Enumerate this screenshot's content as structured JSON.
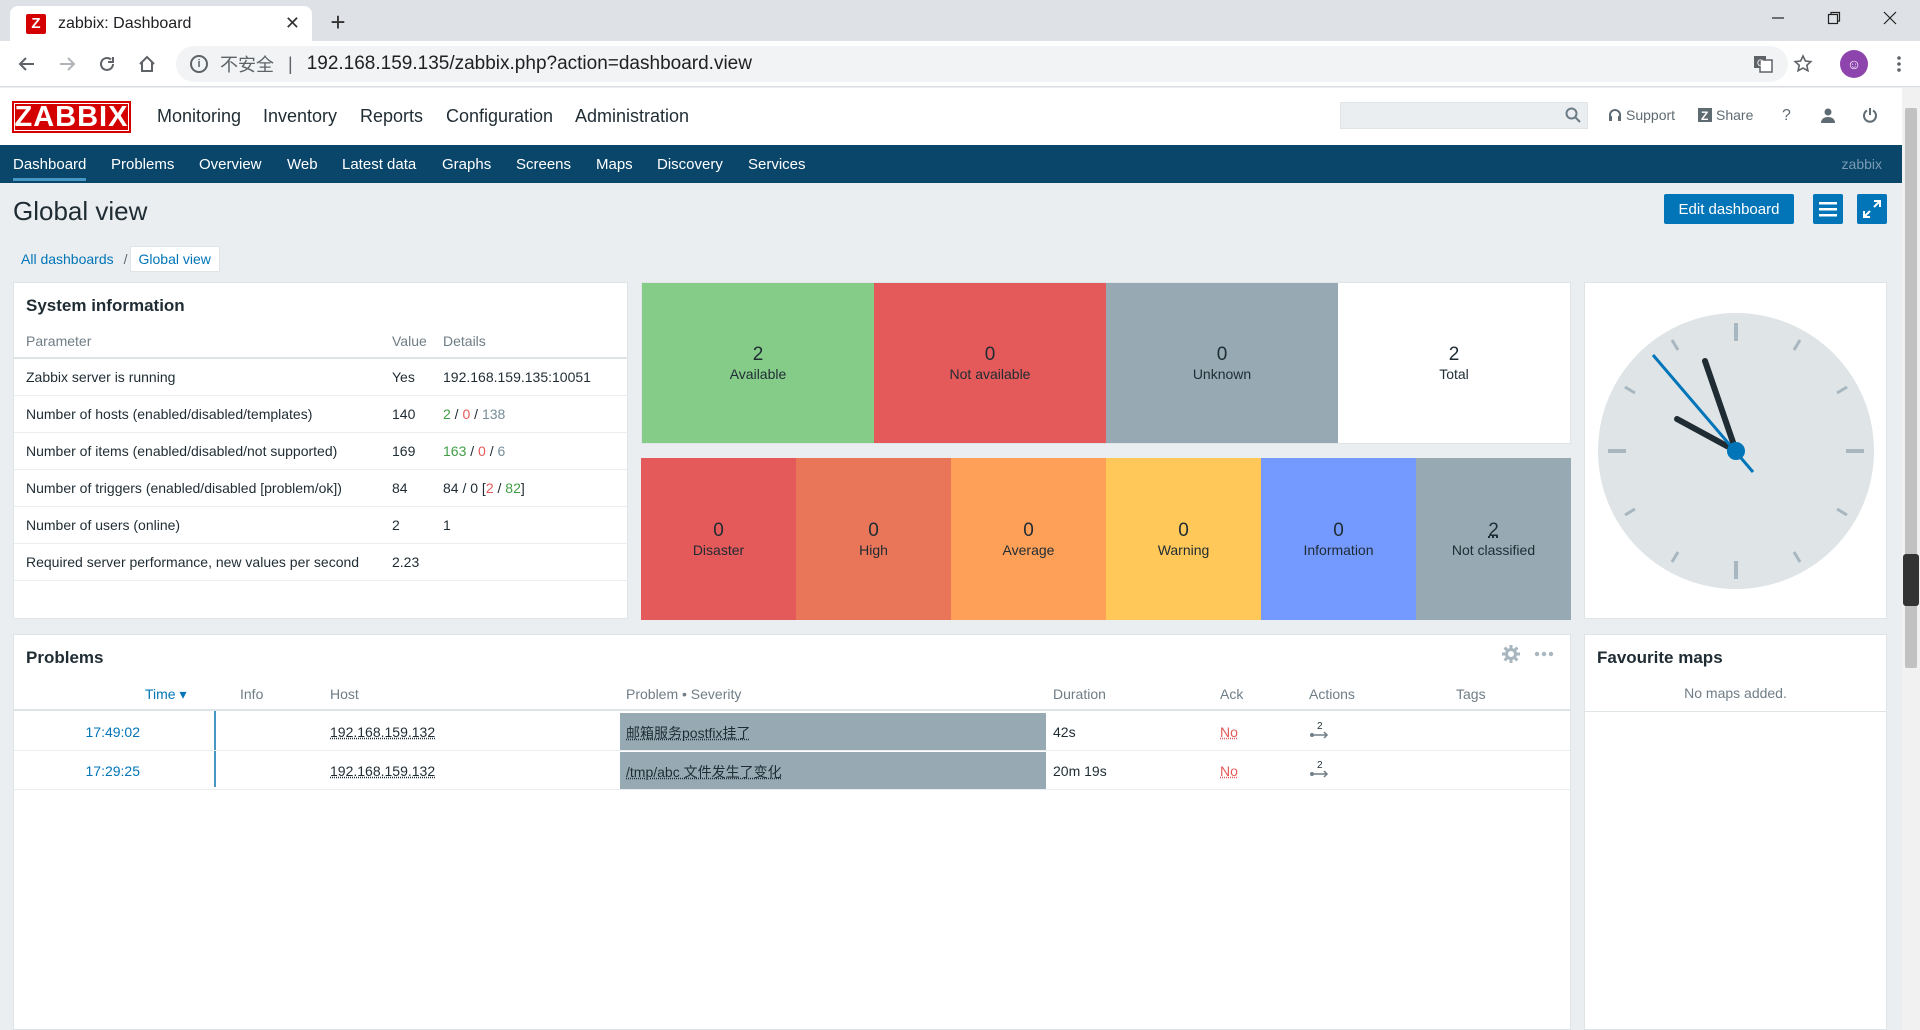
{
  "browser": {
    "tab_title": "zabbix: Dashboard",
    "tab_favicon": "Z",
    "new_tab": "+",
    "security": "不安全",
    "url": "192.168.159.135/zabbix.php?action=dashboard.view"
  },
  "header": {
    "logo": "ZABBIX",
    "menu": [
      "Monitoring",
      "Inventory",
      "Reports",
      "Configuration",
      "Administration"
    ],
    "support": "Support",
    "share": "Share",
    "help": "?"
  },
  "subnav": {
    "items": [
      "Dashboard",
      "Problems",
      "Overview",
      "Web",
      "Latest data",
      "Graphs",
      "Screens",
      "Maps",
      "Discovery",
      "Services"
    ],
    "user": "zabbix"
  },
  "page": {
    "title": "Global view",
    "edit_button": "Edit dashboard",
    "breadcrumb": [
      "All dashboards",
      "Global view"
    ]
  },
  "system_info": {
    "title": "System information",
    "columns": [
      "Parameter",
      "Value",
      "Details"
    ],
    "rows": [
      {
        "param": "Zabbix server is running",
        "value": "Yes",
        "details": "192.168.159.135:10051"
      },
      {
        "param": "Number of hosts (enabled/disabled/templates)",
        "value": "140",
        "d1": "2",
        "d2": "0",
        "d3": "138"
      },
      {
        "param": "Number of items (enabled/disabled/not supported)",
        "value": "169",
        "d1": "163",
        "d2": "0",
        "d3": "6"
      },
      {
        "param": "Number of triggers (enabled/disabled [problem/ok])",
        "value": "84",
        "d_pre": "84 / 0 [",
        "d1": "2",
        "d2": "82",
        "d_post": "]"
      },
      {
        "param": "Number of users (online)",
        "value": "2",
        "details": "1"
      },
      {
        "param": "Required server performance, new values per second",
        "value": "2.23",
        "details": ""
      }
    ]
  },
  "host_availability": [
    {
      "count": "2",
      "label": "Available",
      "color": "#86cc89"
    },
    {
      "count": "0",
      "label": "Not available",
      "color": "#e45959"
    },
    {
      "count": "0",
      "label": "Unknown",
      "color": "#97aab3"
    },
    {
      "count": "2",
      "label": "Total",
      "color": "#ffffff"
    }
  ],
  "problems_by_severity": [
    {
      "count": "0",
      "label": "Disaster",
      "color": "#e45959"
    },
    {
      "count": "0",
      "label": "High",
      "color": "#e97659"
    },
    {
      "count": "0",
      "label": "Average",
      "color": "#ffa059"
    },
    {
      "count": "0",
      "label": "Warning",
      "color": "#ffc859"
    },
    {
      "count": "0",
      "label": "Information",
      "color": "#7499ff"
    },
    {
      "count": "2",
      "label": "Not classified",
      "color": "#97aab3"
    }
  ],
  "problems": {
    "title": "Problems",
    "columns": {
      "time": "Time ▾",
      "info": "Info",
      "host": "Host",
      "problem": "Problem • Severity",
      "duration": "Duration",
      "ack": "Ack",
      "actions": "Actions",
      "tags": "Tags"
    },
    "rows": [
      {
        "time": "17:49:02",
        "host": "192.168.159.132",
        "problem": "邮箱服务postfix挂了",
        "duration": "42s",
        "ack": "No",
        "actions": "2"
      },
      {
        "time": "17:29:25",
        "host": "192.168.159.132",
        "problem": "/tmp/abc 文件发生了变化",
        "duration": "20m 19s",
        "ack": "No",
        "actions": "2"
      }
    ]
  },
  "favourite_maps": {
    "title": "Favourite maps",
    "empty": "No maps added."
  },
  "colors": {
    "brand": "#d40000",
    "nav": "#0a466a",
    "accent": "#0275b8"
  }
}
